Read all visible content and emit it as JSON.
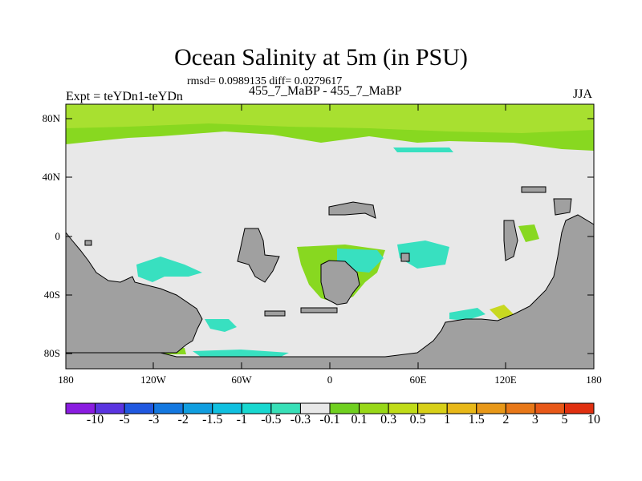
{
  "header": {
    "title": "Ocean Salinity at 5m (in PSU)",
    "stats": "rmsd= 0.0989135 diff= 0.0279617",
    "experiment": "Expt = teYDn1-teYDn",
    "subtitle": "455_7_MaBP - 455_7_MaBP",
    "season": "JJA"
  },
  "map": {
    "lat_ticks": [
      "80N",
      "40N",
      "0",
      "40S",
      "80S"
    ],
    "lon_ticks": [
      "180",
      "120W",
      "60W",
      "0",
      "60E",
      "120E",
      "180"
    ],
    "colors": {
      "land": "#a0a0a0",
      "neutral": "#e8e8e8",
      "green": "#88d820",
      "green_light": "#a8e030",
      "cyan": "#38e0c0",
      "yellow": "#c8d820",
      "orange": "#e0a020"
    }
  },
  "colorbar": {
    "labels": [
      "-10",
      "-5",
      "-3",
      "-2",
      "-1.5",
      "-1",
      "-0.5",
      "-0.3",
      "-0.1",
      "0.1",
      "0.3",
      "0.5",
      "1",
      "1.5",
      "2",
      "3",
      "5",
      "10"
    ],
    "colors": [
      "#8a1ce0",
      "#5a34e0",
      "#2058e0",
      "#1478e0",
      "#109ee0",
      "#10c0e0",
      "#18d8d0",
      "#38e0b8",
      "#e8e8e8",
      "#70d020",
      "#98d818",
      "#c0dc18",
      "#d8d018",
      "#e8b818",
      "#e89818",
      "#e87818",
      "#e85818",
      "#e03010"
    ]
  }
}
